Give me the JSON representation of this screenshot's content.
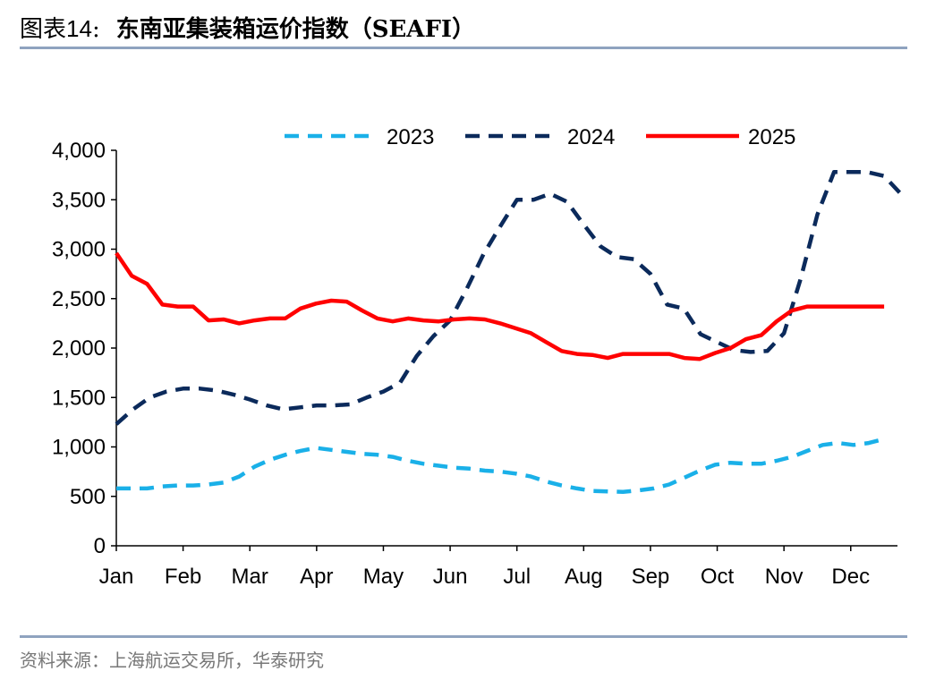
{
  "header": {
    "prefix": "图表",
    "number": "14",
    "colon": ":",
    "title": "东南亚集装箱运价指数（SEAFI）"
  },
  "footer": {
    "source": "资料来源：上海航运交易所，华泰研究"
  },
  "colors": {
    "s2023": "#1ab0e8",
    "s2024": "#0b2a5b",
    "s2025": "#ff0000",
    "rule": "#8fa3bf",
    "axis": "#000000"
  },
  "chart_data": {
    "type": "line",
    "title": "东南亚集装箱运价指数（SEAFI）",
    "xlabel": "",
    "ylabel": "",
    "ylim": [
      0,
      4000
    ],
    "xlim": [
      0,
      11.7
    ],
    "yticks": [
      0,
      500,
      1000,
      1500,
      2000,
      2500,
      3000,
      3500,
      4000
    ],
    "ytick_labels": [
      "0",
      "500",
      "1,000",
      "1,500",
      "2,000",
      "2,500",
      "3,000",
      "3,500",
      "4,000"
    ],
    "categories": [
      "Jan",
      "Feb",
      "Mar",
      "Apr",
      "May",
      "Jun",
      "Jul",
      "Aug",
      "Sep",
      "Oct",
      "Nov",
      "Dec"
    ],
    "grid": false,
    "legend_position": "top",
    "series": [
      {
        "name": "2023",
        "style": "dashed",
        "x": [
          0,
          0.23,
          0.46,
          0.69,
          0.92,
          1.15,
          1.38,
          1.61,
          1.84,
          2.07,
          2.3,
          2.53,
          2.76,
          2.99,
          3.22,
          3.45,
          3.68,
          3.91,
          4.14,
          4.37,
          4.6,
          4.83,
          5.06,
          5.29,
          5.52,
          5.75,
          5.98,
          6.21,
          6.44,
          6.67,
          6.9,
          7.13,
          7.36,
          7.59,
          7.82,
          8.05,
          8.28,
          8.51,
          8.74,
          8.97,
          9.2,
          9.43,
          9.66,
          9.89,
          10.12,
          10.35,
          10.58,
          10.81,
          11.04,
          11.27,
          11.5
        ],
        "values": [
          580,
          580,
          580,
          600,
          610,
          610,
          620,
          640,
          700,
          800,
          870,
          920,
          960,
          990,
          970,
          950,
          930,
          920,
          900,
          860,
          830,
          810,
          790,
          780,
          760,
          750,
          730,
          700,
          650,
          610,
          580,
          555,
          550,
          545,
          560,
          580,
          620,
          690,
          760,
          820,
          840,
          830,
          830,
          860,
          900,
          960,
          1020,
          1040,
          1020,
          1040,
          1080
        ]
      },
      {
        "name": "2024",
        "style": "dashed",
        "x": [
          0,
          0.25,
          0.5,
          0.75,
          1.0,
          1.25,
          1.5,
          1.75,
          2.0,
          2.25,
          2.5,
          2.75,
          3.0,
          3.25,
          3.5,
          3.75,
          4.0,
          4.25,
          4.5,
          4.75,
          5.0,
          5.25,
          5.5,
          5.75,
          6.0,
          6.25,
          6.5,
          6.75,
          7.0,
          7.25,
          7.5,
          7.75,
          8.0,
          8.25,
          8.5,
          8.75,
          9.0,
          9.25,
          9.5,
          9.75,
          10.0,
          10.25,
          10.5,
          10.75,
          11.0,
          11.25,
          11.5,
          11.75
        ],
        "values": [
          1230,
          1380,
          1500,
          1560,
          1590,
          1590,
          1570,
          1530,
          1480,
          1420,
          1380,
          1400,
          1420,
          1420,
          1430,
          1500,
          1560,
          1650,
          1920,
          2120,
          2280,
          2600,
          2950,
          3230,
          3500,
          3500,
          3560,
          3480,
          3250,
          3030,
          2920,
          2900,
          2750,
          2440,
          2400,
          2140,
          2060,
          1980,
          1960,
          1970,
          2150,
          2700,
          3350,
          3780,
          3780,
          3780,
          3740,
          3560
        ]
      },
      {
        "name": "2025",
        "style": "solid",
        "x": [
          0,
          0.23,
          0.46,
          0.69,
          0.92,
          1.15,
          1.38,
          1.61,
          1.84,
          2.07,
          2.3,
          2.53,
          2.76,
          2.99,
          3.22,
          3.45,
          3.68,
          3.91,
          4.14,
          4.37,
          4.6,
          4.83,
          5.06,
          5.29,
          5.52,
          5.75,
          5.98,
          6.21,
          6.44,
          6.67,
          6.9,
          7.13,
          7.36,
          7.59,
          7.82,
          8.05,
          8.28,
          8.51,
          8.74,
          8.97,
          9.2,
          9.43,
          9.66,
          9.89,
          10.12,
          10.35,
          10.58,
          10.81,
          11.04,
          11.27,
          11.5
        ],
        "values": [
          2960,
          2730,
          2650,
          2440,
          2420,
          2420,
          2280,
          2290,
          2250,
          2280,
          2300,
          2300,
          2400,
          2450,
          2480,
          2470,
          2380,
          2300,
          2270,
          2300,
          2280,
          2270,
          2290,
          2300,
          2290,
          2250,
          2200,
          2150,
          2060,
          1970,
          1940,
          1930,
          1900,
          1940,
          1940,
          1940,
          1940,
          1900,
          1890,
          1950,
          2000,
          2090,
          2130,
          2270,
          2380,
          2420,
          2420,
          2420,
          2420,
          2420,
          2420
        ]
      }
    ]
  }
}
